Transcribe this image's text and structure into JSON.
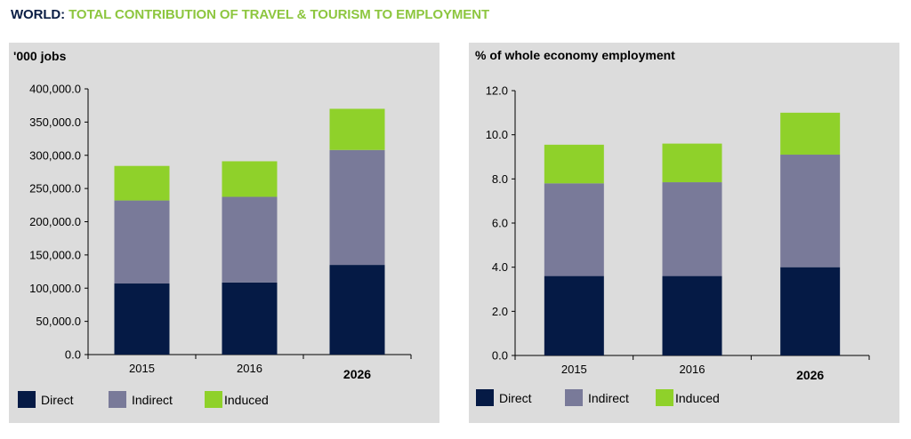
{
  "heading": {
    "prefix": "WORLD:",
    "title": "TOTAL CONTRIBUTION OF TRAVEL & TOURISM TO EMPLOYMENT"
  },
  "colors": {
    "heading_prefix": "#0a1d44",
    "heading_title": "#8dc63f",
    "direct": "#051a45",
    "indirect": "#797a99",
    "induced": "#8fd12a",
    "panel_bg": "#dcdcdc"
  },
  "chart_data": [
    {
      "type": "bar",
      "stacked": true,
      "unit_label": "'000 jobs",
      "categories": [
        "2015",
        "2016",
        "2026"
      ],
      "bold_categories": [
        "2026"
      ],
      "ylim": [
        0,
        400000
      ],
      "yticks": [
        0,
        50000,
        100000,
        150000,
        200000,
        250000,
        300000,
        350000,
        400000
      ],
      "ytick_labels": [
        "0.0",
        "50,000.0",
        "100,000.0",
        "150,000.0",
        "200,000.0",
        "250,000.0",
        "300,000.0",
        "350,000.0",
        "400,000.0"
      ],
      "grid": false,
      "legend_position": "bottom",
      "series": [
        {
          "name": "Direct",
          "values": [
            107000,
            108500,
            135000
          ]
        },
        {
          "name": "Indirect",
          "values": [
            125000,
            129000,
            173000
          ]
        },
        {
          "name": "Induced",
          "values": [
            52000,
            53500,
            62000
          ]
        }
      ]
    },
    {
      "type": "bar",
      "stacked": true,
      "unit_label": "% of whole economy employment",
      "categories": [
        "2015",
        "2016",
        "2026"
      ],
      "bold_categories": [
        "2026"
      ],
      "ylim": [
        0,
        12
      ],
      "yticks": [
        0,
        2,
        4,
        6,
        8,
        10,
        12
      ],
      "ytick_labels": [
        "0.0",
        "2.0",
        "4.0",
        "6.0",
        "8.0",
        "10.0",
        "12.0"
      ],
      "grid": false,
      "legend_position": "bottom",
      "series": [
        {
          "name": "Direct",
          "values": [
            3.6,
            3.6,
            4.0
          ]
        },
        {
          "name": "Indirect",
          "values": [
            4.2,
            4.25,
            5.1
          ]
        },
        {
          "name": "Induced",
          "values": [
            1.75,
            1.75,
            1.9
          ]
        }
      ]
    }
  ]
}
